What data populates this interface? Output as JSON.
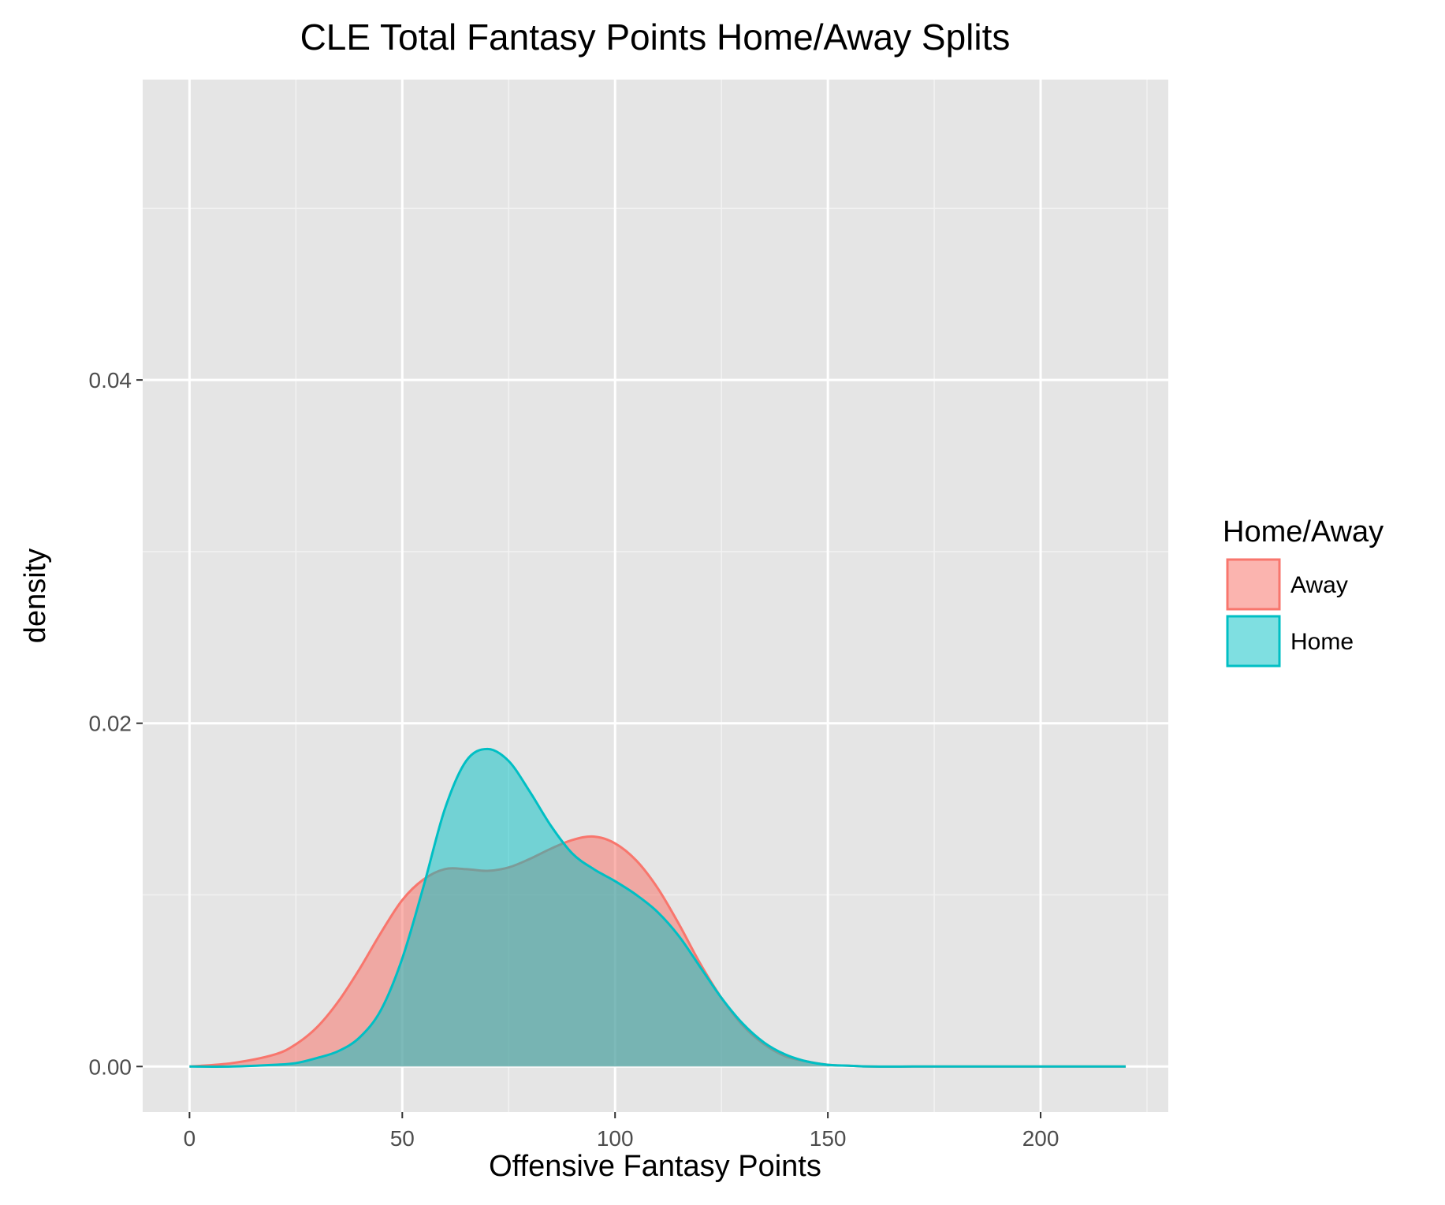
{
  "chart_data": {
    "type": "area",
    "subtype": "density",
    "title": "CLE Total Fantasy Points Home/Away Splits",
    "xlabel": "Offensive Fantasy Points",
    "ylabel": "density",
    "xlim": [
      -11,
      230
    ],
    "ylim": [
      -0.00265,
      0.0575
    ],
    "x_ticks": [
      0,
      50,
      100,
      150,
      200
    ],
    "x_tick_labels": [
      "0",
      "50",
      "100",
      "150",
      "200"
    ],
    "y_ticks": [
      0.0,
      0.02,
      0.04
    ],
    "y_tick_labels": [
      "0.00",
      "0.02",
      "0.04"
    ],
    "grid": true,
    "legend": {
      "title": "Home/Away",
      "position": "right"
    },
    "series": [
      {
        "name": "Away",
        "color": "#F8766D",
        "fill": "#F8766D",
        "fill_opacity": 0.55,
        "x": [
          0,
          10,
          20,
          25,
          30,
          35,
          40,
          45,
          50,
          55,
          60,
          65,
          70,
          75,
          80,
          85,
          90,
          95,
          100,
          105,
          110,
          115,
          120,
          125,
          130,
          135,
          140,
          145,
          150,
          155,
          160,
          170,
          180,
          200,
          220
        ],
        "y": [
          0.0,
          0.0002,
          0.0007,
          0.0013,
          0.0023,
          0.0038,
          0.0057,
          0.0078,
          0.0097,
          0.0109,
          0.0115,
          0.0115,
          0.0114,
          0.0116,
          0.0121,
          0.0127,
          0.0132,
          0.0134,
          0.013,
          0.012,
          0.0104,
          0.0083,
          0.006,
          0.004,
          0.0024,
          0.0013,
          0.0006,
          0.0003,
          0.0001,
          5e-05,
          0.0,
          0.0,
          0.0,
          0.0,
          0.0
        ]
      },
      {
        "name": "Home",
        "color": "#00BFC4",
        "fill": "#00BFC4",
        "fill_opacity": 0.5,
        "x": [
          0,
          10,
          20,
          25,
          30,
          35,
          40,
          45,
          50,
          55,
          60,
          65,
          70,
          75,
          80,
          85,
          90,
          95,
          100,
          105,
          110,
          115,
          120,
          125,
          130,
          135,
          140,
          145,
          150,
          155,
          160,
          170,
          180,
          200,
          220
        ],
        "y": [
          0.0,
          0.0,
          0.0001,
          0.0002,
          0.0005,
          0.0009,
          0.0017,
          0.0033,
          0.0063,
          0.0105,
          0.015,
          0.0178,
          0.0185,
          0.0178,
          0.016,
          0.014,
          0.0124,
          0.0115,
          0.0108,
          0.01,
          0.009,
          0.0076,
          0.0058,
          0.004,
          0.0025,
          0.0014,
          0.0007,
          0.0003,
          0.0001,
          5e-05,
          0.0,
          0.0,
          0.0,
          0.0,
          0.0
        ]
      }
    ]
  }
}
